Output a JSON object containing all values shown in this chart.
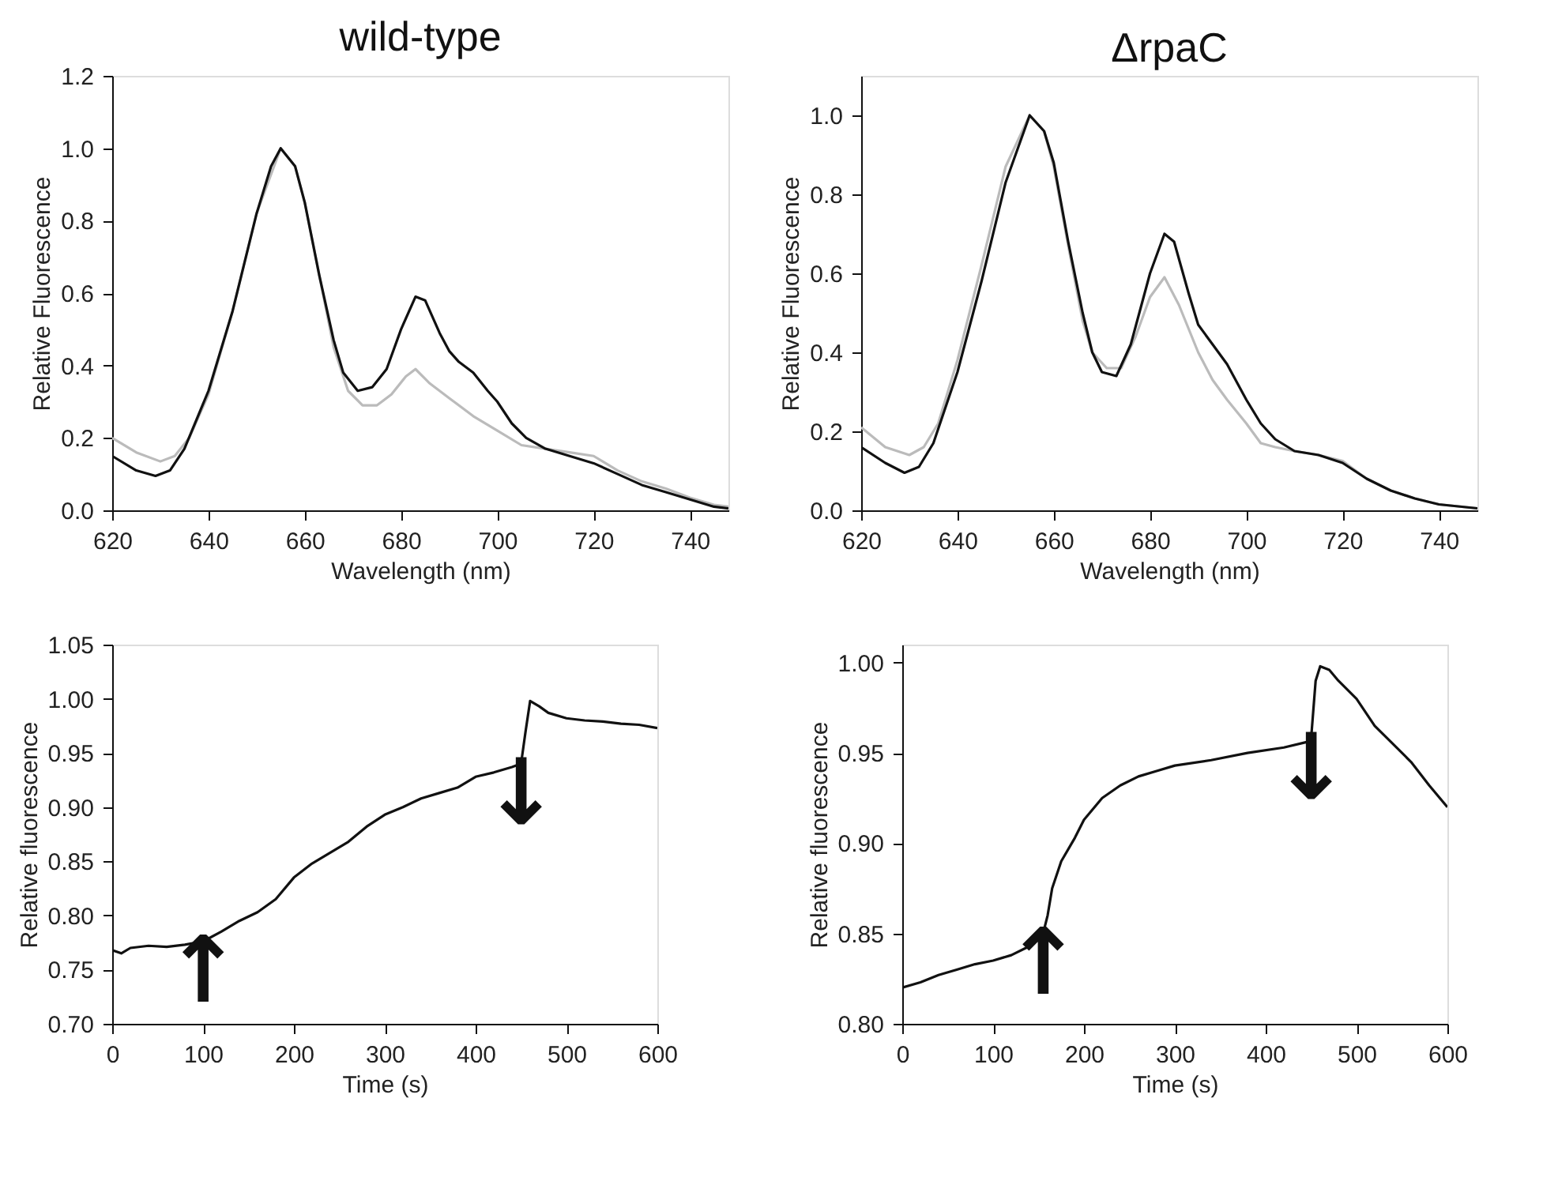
{
  "chart_data": [
    {
      "type": "line",
      "title": "wild-type",
      "xlabel": "Wavelength (nm)",
      "ylabel": "Relative Fluorescence",
      "xlim": [
        620,
        748
      ],
      "ylim": [
        0,
        1.2
      ],
      "xticks": [
        620,
        640,
        660,
        680,
        700,
        720,
        740
      ],
      "yticks": [
        {
          "value": 0,
          "label": "0.0"
        },
        0.2,
        0.4,
        0.6,
        0.8,
        {
          "value": 1,
          "label": "1.0"
        },
        1.2
      ],
      "series": [
        {
          "color": "#bbbbbb",
          "x": [
            620,
            625,
            630,
            633,
            636,
            640,
            645,
            650,
            655,
            658,
            660,
            663,
            666,
            669,
            672,
            675,
            678,
            681,
            683,
            686,
            690,
            695,
            700,
            705,
            710,
            715,
            720,
            725,
            730,
            735,
            740,
            745,
            748
          ],
          "values": [
            0.2,
            0.16,
            0.135,
            0.15,
            0.2,
            0.32,
            0.55,
            0.82,
            1.0,
            0.95,
            0.85,
            0.65,
            0.45,
            0.33,
            0.29,
            0.29,
            0.32,
            0.37,
            0.39,
            0.35,
            0.31,
            0.26,
            0.22,
            0.18,
            0.17,
            0.16,
            0.15,
            0.11,
            0.08,
            0.06,
            0.035,
            0.015,
            0.01
          ]
        },
        {
          "color": "#111111",
          "x": [
            620,
            625,
            629,
            632,
            635,
            640,
            645,
            650,
            653,
            655,
            658,
            660,
            663,
            666,
            668,
            671,
            674,
            677,
            680,
            683,
            685,
            688,
            690,
            692,
            695,
            698,
            700,
            703,
            706,
            710,
            715,
            720,
            725,
            730,
            735,
            740,
            745,
            748
          ],
          "values": [
            0.15,
            0.11,
            0.095,
            0.11,
            0.17,
            0.33,
            0.55,
            0.82,
            0.95,
            1.0,
            0.95,
            0.85,
            0.65,
            0.47,
            0.38,
            0.33,
            0.34,
            0.39,
            0.5,
            0.59,
            0.58,
            0.49,
            0.44,
            0.41,
            0.38,
            0.33,
            0.3,
            0.24,
            0.2,
            0.17,
            0.15,
            0.13,
            0.1,
            0.07,
            0.05,
            0.03,
            0.01,
            0.005
          ]
        }
      ]
    },
    {
      "type": "line",
      "title": "ΔrpaC",
      "xlabel": "Wavelength (nm)",
      "ylabel": "Relative Fluorescence",
      "xlim": [
        620,
        748
      ],
      "ylim": [
        0,
        1.1
      ],
      "xticks": [
        620,
        640,
        660,
        680,
        700,
        720,
        740
      ],
      "yticks": [
        {
          "value": 0,
          "label": "0.0"
        },
        0.2,
        0.4,
        0.6,
        0.8,
        {
          "value": 1,
          "label": "1.0"
        }
      ],
      "series": [
        {
          "color": "#bbbbbb",
          "x": [
            620,
            625,
            630,
            633,
            636,
            640,
            645,
            650,
            655,
            658,
            660,
            663,
            666,
            668,
            671,
            674,
            677,
            680,
            683,
            686,
            690,
            693,
            696,
            700,
            703,
            706,
            710,
            715,
            720,
            725,
            730,
            735,
            740,
            748
          ],
          "values": [
            0.21,
            0.16,
            0.14,
            0.16,
            0.22,
            0.38,
            0.62,
            0.87,
            1.0,
            0.96,
            0.87,
            0.67,
            0.48,
            0.4,
            0.36,
            0.36,
            0.44,
            0.54,
            0.59,
            0.52,
            0.4,
            0.33,
            0.28,
            0.22,
            0.17,
            0.16,
            0.15,
            0.14,
            0.125,
            0.08,
            0.05,
            0.03,
            0.015,
            0.005
          ]
        },
        {
          "color": "#111111",
          "x": [
            620,
            625,
            629,
            632,
            635,
            640,
            645,
            650,
            655,
            658,
            660,
            663,
            666,
            668,
            670,
            673,
            676,
            680,
            683,
            685,
            688,
            690,
            693,
            696,
            700,
            703,
            706,
            710,
            715,
            720,
            725,
            730,
            735,
            740,
            748
          ],
          "values": [
            0.16,
            0.12,
            0.095,
            0.11,
            0.17,
            0.35,
            0.58,
            0.83,
            1.0,
            0.96,
            0.88,
            0.68,
            0.5,
            0.4,
            0.35,
            0.34,
            0.42,
            0.6,
            0.7,
            0.68,
            0.55,
            0.47,
            0.42,
            0.37,
            0.28,
            0.22,
            0.18,
            0.15,
            0.14,
            0.12,
            0.08,
            0.05,
            0.03,
            0.015,
            0.005
          ]
        }
      ]
    },
    {
      "type": "line",
      "xlabel": "Time (s)",
      "ylabel": "Relative fluorescence",
      "xlim": [
        0,
        600
      ],
      "ylim": [
        0.7,
        1.05
      ],
      "xticks": [
        0,
        100,
        200,
        300,
        400,
        500,
        600
      ],
      "yticks": [
        {
          "value": 0.7,
          "label": "0.70"
        },
        0.75,
        {
          "value": 0.8,
          "label": "0.80"
        },
        0.85,
        {
          "value": 0.9,
          "label": "0.90"
        },
        0.95,
        {
          "value": 1,
          "label": "1.00"
        },
        1.05
      ],
      "annotations": [
        {
          "text": "↑",
          "x": 100,
          "y": 0.776
        },
        {
          "text": "↓",
          "x": 450,
          "y": 0.94
        }
      ],
      "series": [
        {
          "color": "#111111",
          "x": [
            0,
            10,
            20,
            40,
            60,
            80,
            100,
            120,
            140,
            160,
            180,
            200,
            220,
            240,
            260,
            280,
            300,
            320,
            340,
            360,
            380,
            400,
            420,
            440,
            450,
            455,
            460,
            470,
            480,
            500,
            520,
            540,
            560,
            580,
            600
          ],
          "values": [
            0.768,
            0.765,
            0.77,
            0.772,
            0.771,
            0.773,
            0.776,
            0.785,
            0.795,
            0.803,
            0.815,
            0.835,
            0.848,
            0.858,
            0.868,
            0.882,
            0.893,
            0.9,
            0.908,
            0.913,
            0.918,
            0.928,
            0.932,
            0.937,
            0.94,
            0.97,
            0.998,
            0.993,
            0.987,
            0.982,
            0.98,
            0.979,
            0.977,
            0.976,
            0.973
          ]
        }
      ]
    },
    {
      "type": "line",
      "xlabel": "Time (s)",
      "ylabel": "Relative fluorescence",
      "xlim": [
        0,
        600
      ],
      "ylim": [
        0.8,
        1.01
      ],
      "xticks": [
        0,
        100,
        200,
        300,
        400,
        500,
        600
      ],
      "yticks": [
        {
          "value": 0.8,
          "label": "0.80"
        },
        0.85,
        {
          "value": 0.9,
          "label": "0.90"
        },
        0.95,
        {
          "value": 1,
          "label": "1.00"
        }
      ],
      "annotations": [
        {
          "text": "↑",
          "x": 155,
          "y": 0.85
        },
        {
          "text": "↓",
          "x": 450,
          "y": 0.958
        }
      ],
      "series": [
        {
          "color": "#111111",
          "x": [
            0,
            20,
            40,
            60,
            80,
            100,
            120,
            140,
            155,
            160,
            165,
            175,
            190,
            200,
            220,
            240,
            260,
            280,
            300,
            340,
            380,
            420,
            445,
            450,
            455,
            460,
            470,
            480,
            500,
            520,
            540,
            560,
            580,
            600
          ],
          "values": [
            0.82,
            0.823,
            0.827,
            0.83,
            0.833,
            0.835,
            0.838,
            0.843,
            0.85,
            0.86,
            0.875,
            0.89,
            0.903,
            0.913,
            0.925,
            0.932,
            0.937,
            0.94,
            0.943,
            0.946,
            0.95,
            0.953,
            0.956,
            0.958,
            0.99,
            0.998,
            0.996,
            0.99,
            0.98,
            0.965,
            0.955,
            0.945,
            0.932,
            0.92
          ]
        }
      ]
    }
  ]
}
